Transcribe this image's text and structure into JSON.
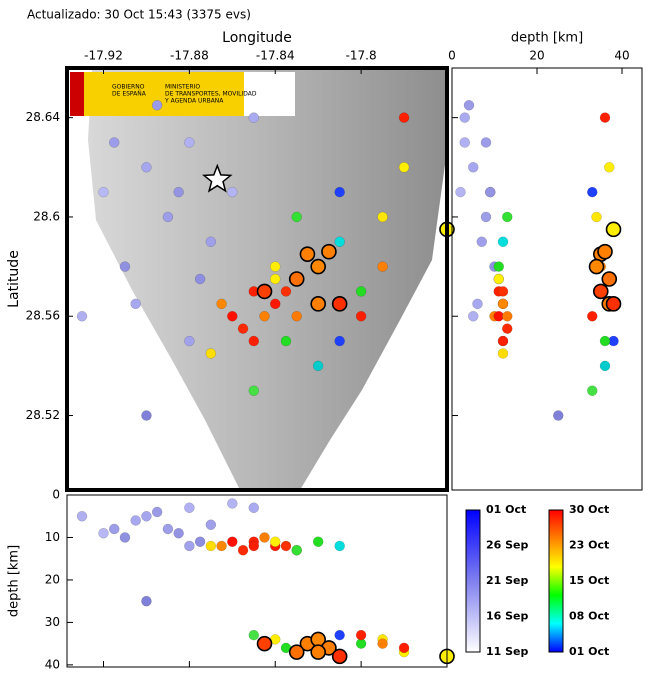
{
  "header": "Actualizado: 30 Oct 15:43 (3375 evs)",
  "logo": {
    "line1": "GOBIERNO",
    "line2": "DE ESPAÑA",
    "line3": "MINISTERIO",
    "line4": "DE TRANSPORTES, MOVILIDAD",
    "line5": "Y AGENDA URBANA"
  },
  "chart_data": {
    "type": "seismic",
    "xlabel": "Longitude",
    "ylabel": "Latitude",
    "depth_label": "depth [km]",
    "depth_ylabel": "depth [km]",
    "xlim": [
      -17.937,
      -17.76
    ],
    "xticks": [
      -17.92,
      -17.88,
      -17.84,
      -17.8
    ],
    "ylim": [
      28.49,
      28.66
    ],
    "yticks": [
      28.64,
      28.6,
      28.56,
      28.52
    ],
    "side_depthlim": [
      0,
      44.7
    ],
    "side_depthticks": [
      0,
      20,
      40
    ],
    "bottom_depthlim": [
      0,
      40.5
    ],
    "bottom_depthticks": [
      0,
      10,
      20,
      30,
      40
    ],
    "star": {
      "lon": -17.867,
      "lat": 28.615
    },
    "events": {
      "lon": [
        -17.9,
        -17.89,
        -17.88,
        -17.91,
        -17.87,
        -17.92,
        -17.895,
        -17.875,
        -17.905,
        -17.86,
        -17.915,
        -17.88,
        -17.93,
        -17.9,
        -17.85,
        -17.885,
        -17.85,
        -17.84,
        -17.845,
        -17.855,
        -17.835,
        -17.86,
        -17.83,
        -17.85,
        -17.84,
        -17.865,
        -17.82,
        -17.81,
        -17.83,
        -17.8,
        -17.79,
        -17.82,
        -17.85,
        -17.78,
        -17.81,
        -17.87,
        -17.8,
        -17.84,
        -17.835,
        -17.79,
        -17.81,
        -17.78,
        -17.825,
        -17.82,
        -17.83,
        -17.815,
        -17.845,
        -17.76,
        -17.82,
        -17.81
      ],
      "lat": [
        28.62,
        28.6,
        28.63,
        28.58,
        28.59,
        28.61,
        28.645,
        28.575,
        28.565,
        28.61,
        28.63,
        28.55,
        28.56,
        28.52,
        28.64,
        28.61,
        28.57,
        28.565,
        28.56,
        28.555,
        28.57,
        28.56,
        28.56,
        28.55,
        28.575,
        28.565,
        28.58,
        28.59,
        28.6,
        28.57,
        28.6,
        28.54,
        28.53,
        28.62,
        28.55,
        28.545,
        28.56,
        28.58,
        28.55,
        28.58,
        28.61,
        28.64,
        28.585,
        28.58,
        28.575,
        28.586,
        28.57,
        28.595,
        28.565,
        28.565
      ],
      "depth": [
        5,
        8,
        3,
        10,
        7,
        9,
        4,
        11,
        6,
        2,
        8,
        12,
        5,
        25,
        3,
        9,
        11,
        12,
        10,
        13,
        12,
        11,
        13,
        12,
        11,
        12,
        11,
        12,
        13,
        35,
        34,
        36,
        33,
        37,
        38,
        12,
        33,
        34,
        36,
        35,
        33,
        36,
        35,
        34,
        37,
        36,
        35,
        38,
        37,
        38
      ],
      "color": [
        "#a6a6ee",
        "#9d9de8",
        "#b0b0f2",
        "#9090e0",
        "#a0a0ea",
        "#b8b8f4",
        "#9a9ae6",
        "#8e8ee0",
        "#a8a8ee",
        "#b4b4f2",
        "#9c9ce8",
        "#a2a2ec",
        "#b0b0f0",
        "#8080d8",
        "#aaaaf0",
        "#9494e2",
        "#ff2000",
        "#ff1800",
        "#ff8000",
        "#ff2a00",
        "#ff3000",
        "#ff1000",
        "#ff7a00",
        "#ff2000",
        "#ffee00",
        "#ff8800",
        "#22dd22",
        "#00dddd",
        "#33e033",
        "#22dd22",
        "#ffe600",
        "#00cccc",
        "#44e044",
        "#ffee00",
        "#2040ff",
        "#ffdd00",
        "#ff2000",
        "#ffee00",
        "#22dd22",
        "#ff8000",
        "#2040ff",
        "#ff2000",
        "#ff8000",
        "#ff8800",
        "#ff7000",
        "#ff8000",
        "#ff4000",
        "#ffee00",
        "#ff8000",
        "#ff3000"
      ],
      "outline": [
        false,
        false,
        false,
        false,
        false,
        false,
        false,
        false,
        false,
        false,
        false,
        false,
        false,
        false,
        false,
        false,
        false,
        false,
        false,
        false,
        false,
        false,
        false,
        false,
        false,
        false,
        false,
        false,
        false,
        false,
        false,
        false,
        false,
        false,
        false,
        false,
        false,
        false,
        false,
        false,
        false,
        false,
        true,
        true,
        true,
        true,
        true,
        true,
        true,
        true
      ]
    },
    "colorbars": [
      {
        "labels": [
          "01 Oct",
          "26 Sep",
          "21 Sep",
          "16 Sep",
          "11 Sep"
        ],
        "colors": [
          "#0000ff",
          "#8080f0",
          "#ffffff"
        ]
      },
      {
        "labels": [
          "30 Oct",
          "23 Oct",
          "15 Oct",
          "08 Oct",
          "01 Oct"
        ],
        "colors": [
          "#ff0000",
          "#ff8000",
          "#ffff00",
          "#00ff00",
          "#00ffff",
          "#0000ff"
        ]
      }
    ]
  }
}
